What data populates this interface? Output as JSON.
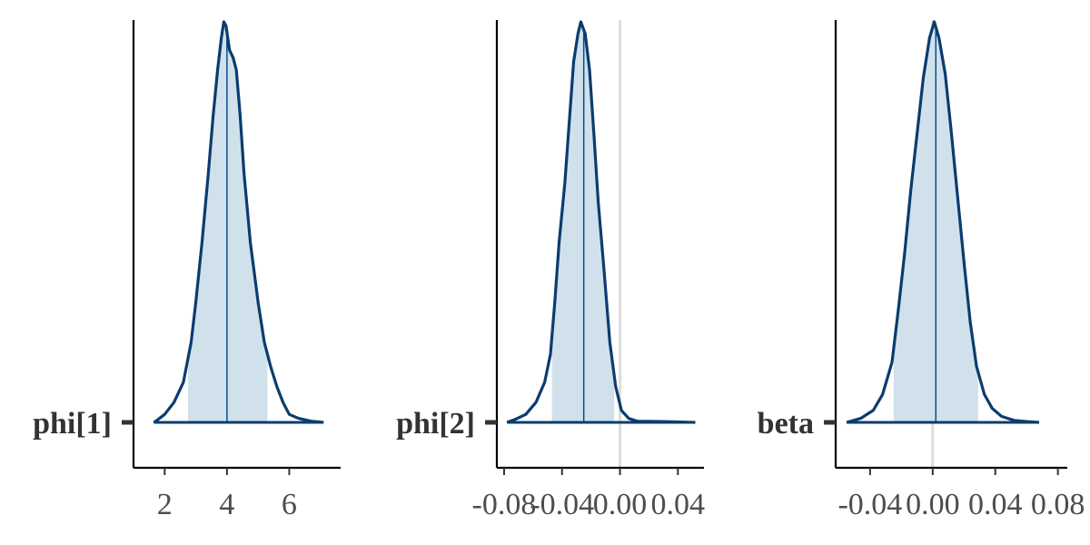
{
  "chart_data": [
    {
      "type": "area",
      "parameter": "phi[1]",
      "xlim": [
        1.0,
        7.65
      ],
      "ticks": [
        2,
        4,
        6
      ],
      "tick_labels": [
        "2",
        "4",
        "6"
      ],
      "median": 4.0,
      "interval": [
        2.75,
        5.3
      ],
      "reference_line": null,
      "density": [
        [
          1.65,
          0.0
        ],
        [
          1.75,
          0.005
        ],
        [
          2.0,
          0.02
        ],
        [
          2.3,
          0.05
        ],
        [
          2.6,
          0.1
        ],
        [
          2.85,
          0.2
        ],
        [
          3.0,
          0.3
        ],
        [
          3.2,
          0.45
        ],
        [
          3.4,
          0.62
        ],
        [
          3.55,
          0.76
        ],
        [
          3.7,
          0.88
        ],
        [
          3.82,
          0.96
        ],
        [
          3.9,
          1.0
        ],
        [
          3.97,
          0.99
        ],
        [
          4.08,
          0.93
        ],
        [
          4.2,
          0.91
        ],
        [
          4.3,
          0.88
        ],
        [
          4.42,
          0.77
        ],
        [
          4.55,
          0.62
        ],
        [
          4.75,
          0.45
        ],
        [
          5.0,
          0.3
        ],
        [
          5.2,
          0.2
        ],
        [
          5.4,
          0.14
        ],
        [
          5.6,
          0.09
        ],
        [
          5.8,
          0.05
        ],
        [
          6.0,
          0.02
        ],
        [
          6.3,
          0.01
        ],
        [
          6.7,
          0.003
        ],
        [
          7.1,
          0.0
        ]
      ]
    },
    {
      "type": "area",
      "parameter": "phi[2]",
      "xlim": [
        -0.085,
        0.058
      ],
      "ticks": [
        -0.08,
        -0.04,
        0.0,
        0.04
      ],
      "tick_labels": [
        "-0.08",
        "-0.04",
        "0.00",
        "0.04"
      ],
      "median": -0.025,
      "interval": [
        -0.047,
        -0.004
      ],
      "reference_line": 0.0,
      "density": [
        [
          -0.078,
          0.0
        ],
        [
          -0.072,
          0.008
        ],
        [
          -0.065,
          0.02
        ],
        [
          -0.058,
          0.05
        ],
        [
          -0.052,
          0.1
        ],
        [
          -0.048,
          0.17
        ],
        [
          -0.045,
          0.3
        ],
        [
          -0.042,
          0.45
        ],
        [
          -0.038,
          0.6
        ],
        [
          -0.035,
          0.75
        ],
        [
          -0.032,
          0.9
        ],
        [
          -0.029,
          0.97
        ],
        [
          -0.027,
          1.0
        ],
        [
          -0.024,
          0.97
        ],
        [
          -0.021,
          0.88
        ],
        [
          -0.018,
          0.72
        ],
        [
          -0.015,
          0.55
        ],
        [
          -0.011,
          0.38
        ],
        [
          -0.007,
          0.2
        ],
        [
          -0.003,
          0.09
        ],
        [
          0.001,
          0.03
        ],
        [
          0.006,
          0.01
        ],
        [
          0.012,
          0.003
        ],
        [
          0.03,
          0.002
        ],
        [
          0.052,
          0.0
        ]
      ]
    },
    {
      "type": "area",
      "parameter": "beta",
      "xlim": [
        -0.062,
        0.086
      ],
      "ticks": [
        -0.04,
        0.0,
        0.04,
        0.08
      ],
      "tick_labels": [
        "-0.04",
        "0.00",
        "0.04",
        "0.08"
      ],
      "median": 0.002,
      "interval": [
        -0.025,
        0.029
      ],
      "reference_line": 0.0,
      "density": [
        [
          -0.055,
          0.0
        ],
        [
          -0.046,
          0.01
        ],
        [
          -0.038,
          0.03
        ],
        [
          -0.032,
          0.07
        ],
        [
          -0.026,
          0.15
        ],
        [
          -0.022,
          0.28
        ],
        [
          -0.018,
          0.42
        ],
        [
          -0.014,
          0.58
        ],
        [
          -0.01,
          0.72
        ],
        [
          -0.006,
          0.86
        ],
        [
          -0.002,
          0.96
        ],
        [
          0.001,
          1.0
        ],
        [
          0.004,
          0.96
        ],
        [
          0.008,
          0.87
        ],
        [
          0.012,
          0.72
        ],
        [
          0.016,
          0.56
        ],
        [
          0.02,
          0.4
        ],
        [
          0.024,
          0.25
        ],
        [
          0.028,
          0.14
        ],
        [
          0.033,
          0.07
        ],
        [
          0.038,
          0.035
        ],
        [
          0.044,
          0.015
        ],
        [
          0.052,
          0.005
        ],
        [
          0.06,
          0.002
        ],
        [
          0.068,
          0.0
        ]
      ]
    }
  ]
}
